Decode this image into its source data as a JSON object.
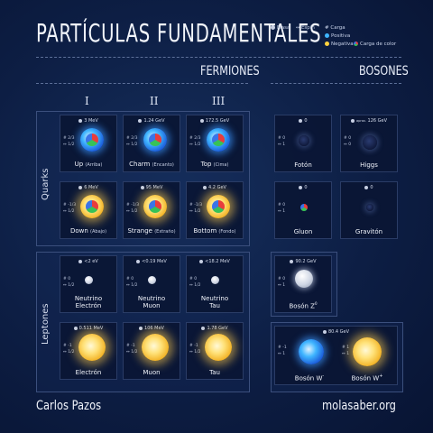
{
  "title": "PARTÍCULAS FUNDAMENTALES",
  "legend": {
    "mass": "Masa",
    "spin": "Espín",
    "charge": "Carga",
    "positive": "Positiva",
    "negative": "Negativa",
    "color_charge": "Carga de color"
  },
  "sections": {
    "fermions": "FERMIONES",
    "bosons": "BOSONES"
  },
  "generations": [
    "I",
    "II",
    "III"
  ],
  "groups": {
    "quarks": "Quarks",
    "leptons": "Leptones"
  },
  "quarks": [
    {
      "mass": "3 MeV",
      "charge": "2/3",
      "spin": "1/2",
      "name": "Up",
      "alt": "(Arriba)",
      "style": "blue"
    },
    {
      "mass": "1.24 GeV",
      "charge": "2/3",
      "spin": "1/2",
      "name": "Charm",
      "alt": "(Encanto)",
      "style": "blue"
    },
    {
      "mass": "172.5 GeV",
      "charge": "2/3",
      "spin": "1/2",
      "name": "Top",
      "alt": "(Cima)",
      "style": "blue"
    },
    {
      "mass": "6 MeV",
      "charge": "-1/3",
      "spin": "1/2",
      "name": "Down",
      "alt": "(Abajo)",
      "style": "gold"
    },
    {
      "mass": "95 MeV",
      "charge": "-1/3",
      "spin": "1/2",
      "name": "Strange",
      "alt": "(Extraño)",
      "style": "gold"
    },
    {
      "mass": "4.2 GeV",
      "charge": "-1/3",
      "spin": "1/2",
      "name": "Bottom",
      "alt": "(Fondo)",
      "style": "gold"
    }
  ],
  "leptons": [
    {
      "mass": "<2 eV",
      "charge": "0",
      "spin": "1/2",
      "name": "Neutrino",
      "name2": "Electrón",
      "style": "grey"
    },
    {
      "mass": "<0.19 MeV",
      "charge": "0",
      "spin": "1/2",
      "name": "Neutrino",
      "name2": "Muon",
      "style": "grey"
    },
    {
      "mass": "<18.2 MeV",
      "charge": "0",
      "spin": "1/2",
      "name": "Neutrino",
      "name2": "Tau",
      "style": "grey"
    },
    {
      "mass": "0.511 MeV",
      "charge": "-1",
      "spin": "1/2",
      "name": "Electrón",
      "name2": "",
      "style": "gold"
    },
    {
      "mass": "106 MeV",
      "charge": "-1",
      "spin": "1/2",
      "name": "Muon",
      "name2": "",
      "style": "gold"
    },
    {
      "mass": "1.78 GeV",
      "charge": "-1",
      "spin": "1/2",
      "name": "Tau",
      "name2": "",
      "style": "gold"
    }
  ],
  "bosons": [
    {
      "mass": "0",
      "charge": "0",
      "spin": "1",
      "name": "Fotón",
      "style": "dark"
    },
    {
      "mass": "126 GeV",
      "mass_prefix": "aprox.",
      "charge": "0",
      "spin": "0",
      "name": "Higgs",
      "style": "dark"
    },
    {
      "mass": "0",
      "charge": "0",
      "spin": "1",
      "name": "Gluon",
      "style": "rgb"
    },
    {
      "mass": "0",
      "charge": "",
      "spin": "",
      "name": "Gravitón",
      "style": "dark"
    },
    {
      "mass": "90.2 GeV",
      "charge": "0",
      "spin": "1",
      "name": "Bosón Z",
      "sup": "0",
      "style": "grey"
    },
    {
      "mass": "80.4 GeV",
      "charge_a": "-1",
      "charge_b": "1",
      "spin": "1",
      "name_a": "Bosón W",
      "sup_a": "-",
      "name_b": "Bosón W",
      "sup_b": "+"
    }
  ],
  "footer": {
    "author": "Carlos Pazos",
    "site": "molasaber.org"
  },
  "colors": {
    "background": "#0b1a3c",
    "positive": "#3fb5ff",
    "negative": "#ffd23f"
  }
}
